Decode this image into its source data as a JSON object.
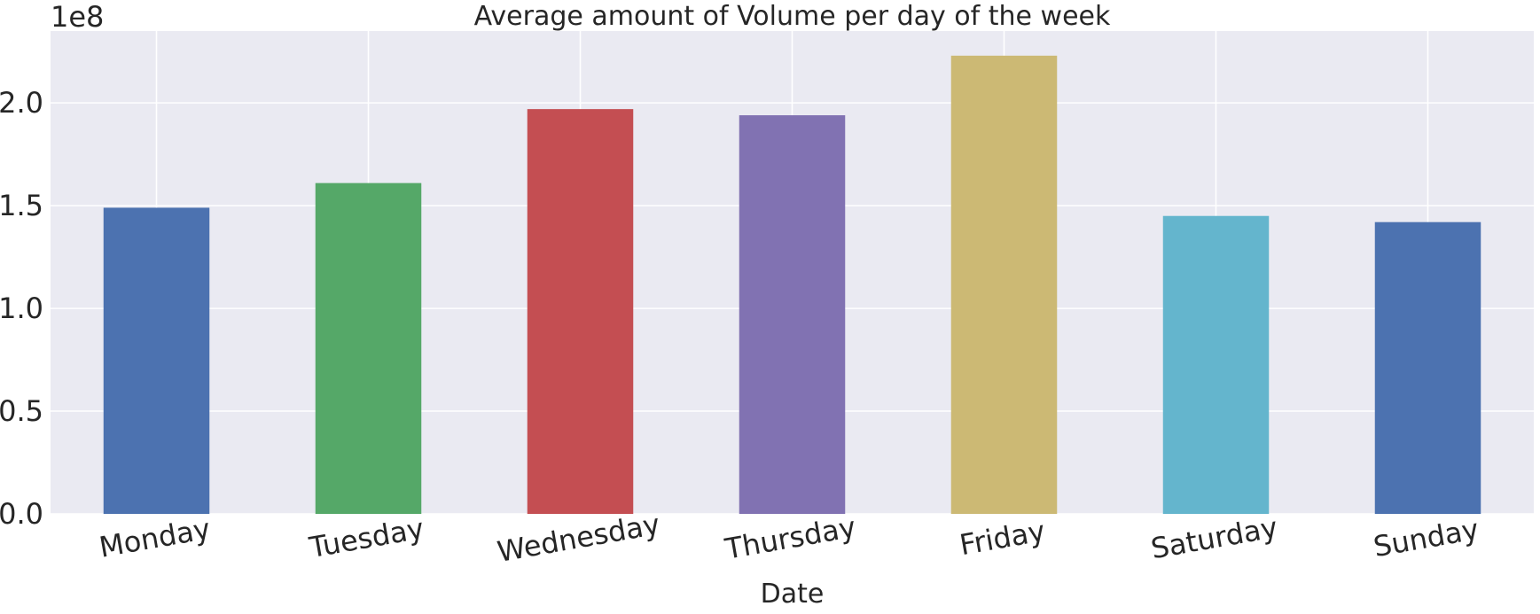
{
  "chart_data": {
    "type": "bar",
    "title": "Average amount of Volume per day of the week",
    "xlabel": "Date",
    "ylabel": "",
    "y_offset_label": "1e8",
    "categories": [
      "Monday",
      "Tuesday",
      "Wednesday",
      "Thursday",
      "Friday",
      "Saturday",
      "Sunday"
    ],
    "values": [
      149000000,
      161000000,
      197000000,
      194000000,
      223000000,
      145000000,
      142000000
    ],
    "ylim": [
      0,
      235000000
    ],
    "y_ticks": [
      0,
      50000000,
      100000000,
      150000000,
      200000000
    ],
    "y_tick_labels": [
      "0.0",
      "0.5",
      "1.0",
      "1.5",
      "2.0"
    ],
    "grid": true,
    "colors": {
      "background": "#EAEAF2",
      "grid": "#FFFFFF",
      "bars": [
        "#4C72B0",
        "#55A868",
        "#C44E52",
        "#8172B2",
        "#CCB974",
        "#64B5CD",
        "#4C72B0"
      ]
    }
  }
}
